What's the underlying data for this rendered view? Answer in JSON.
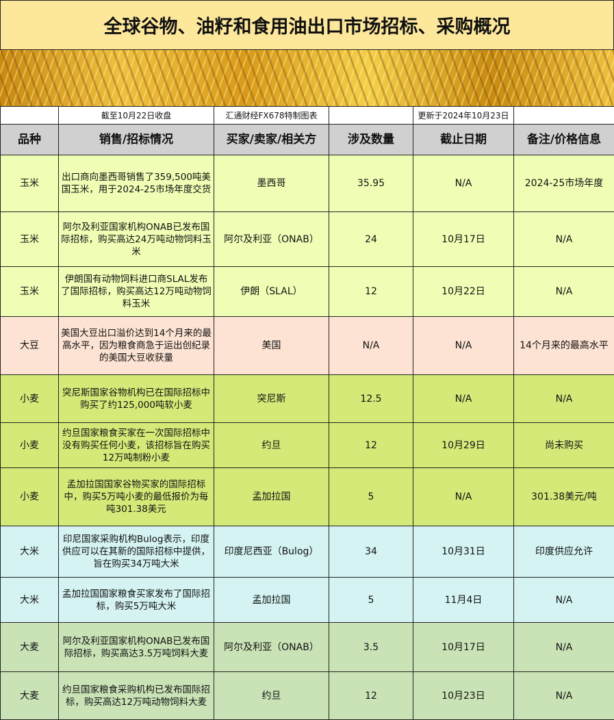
{
  "title": "全球谷物、油籽和食用油出口市场招标、采购概况",
  "subheader": [
    "",
    "截至10月22日收盘",
    "汇通财经FX678特制图表",
    "",
    "更新于2024年10月23日",
    ""
  ],
  "headers": [
    "品种",
    "销售/招标情况",
    "买家/卖家/相关方",
    "涉及数量",
    "截止日期",
    "备注/价格信息"
  ],
  "colors": {
    "玉米": "#eeffb5",
    "大豆": "#fde3d3",
    "小麦": "#d4ea78",
    "大米": "#d4f3f2",
    "大麦": "#c9e3b6"
  },
  "rows": [
    [
      "玉米",
      "出口商向墨西哥销售了359,500吨美国玉米，用于2024-25市场年度交货",
      "墨西哥",
      "35.95",
      "N/A",
      "2024-25市场年度"
    ],
    [
      "玉米",
      "阿尔及利亚国家机构ONAB已发布国际招标，购买高达24万吨动物饲料玉米",
      "阿尔及利亚（ONAB）",
      "24",
      "10月17日",
      "N/A"
    ],
    [
      "玉米",
      "伊朗国有动物饲料进口商SLAL发布了国际招标，购买高达12万吨动物饲料玉米",
      "伊朗（SLAL）",
      "12",
      "10月22日",
      "N/A"
    ],
    [
      "大豆",
      "美国大豆出口溢价达到14个月来的最高水平，因为粮食商急于运出创纪录的美国大豆收获量",
      "美国",
      "N/A",
      "N/A",
      "14个月来的最高水平"
    ],
    [
      "小麦",
      "突尼斯国家谷物机构已在国际招标中购买了约125,000吨软小麦",
      "突尼斯",
      "12.5",
      "N/A",
      "N/A"
    ],
    [
      "小麦",
      "约旦国家粮食买家在一次国际招标中没有购买任何小麦，该招标旨在购买12万吨制粉小麦",
      "约旦",
      "12",
      "10月29日",
      "尚未购买"
    ],
    [
      "小麦",
      "孟加拉国国家谷物买家的国际招标中，购买5万吨小麦的最低报价为每吨301.38美元",
      "孟加拉国",
      "5",
      "N/A",
      "301.38美元/吨"
    ],
    [
      "大米",
      "印尼国家采购机构Bulog表示，印度供应可以在其新的国际招标中提供，旨在购买34万吨大米",
      "印度尼西亚（Bulog）",
      "34",
      "10月31日",
      "印度供应允许"
    ],
    [
      "大米",
      "孟加拉国国家粮食买家发布了国际招标，购买5万吨大米",
      "孟加拉国",
      "5",
      "11月4日",
      "N/A"
    ],
    [
      "大麦",
      "阿尔及利亚国家机构ONAB已发布国际招标，购买高达3.5万吨饲料大麦",
      "阿尔及利亚（ONAB）",
      "3.5",
      "10月17日",
      "N/A"
    ],
    [
      "大麦",
      "约旦国家粮食采购机构已发布国际招标，购买高达12万吨动物饲料大麦",
      "约旦",
      "12",
      "10月23日",
      "N/A"
    ]
  ]
}
